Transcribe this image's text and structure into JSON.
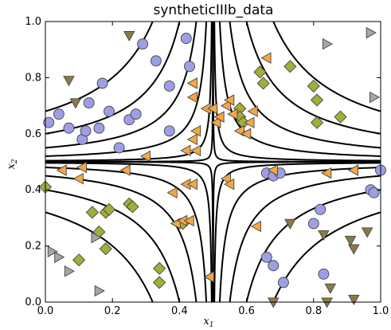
{
  "chart_data": {
    "type": "scatter",
    "title": "syntheticIIIb_data",
    "xlabel": "x",
    "xlabel_sub": "1",
    "ylabel": "x",
    "ylabel_sub": "2",
    "xlim": [
      0.0,
      1.0
    ],
    "ylim": [
      0.0,
      1.0
    ],
    "xticks": [
      0.0,
      0.2,
      0.4,
      0.6,
      0.8,
      1.0
    ],
    "yticks": [
      0.0,
      0.2,
      0.4,
      0.6,
      0.8,
      1.0
    ],
    "xtick_labels": [
      "0.0",
      "0.2",
      "0.4",
      "0.6",
      "0.8",
      "1.0"
    ],
    "ytick_labels": [
      "0.0",
      "0.2",
      "0.4",
      "0.6",
      "0.8",
      "1.0"
    ],
    "grid": false,
    "legend": null,
    "decision_boundary": {
      "center": [
        0.5,
        0.5
      ],
      "levels": [
        0.0002,
        0.002,
        0.01,
        0.025,
        0.05,
        0.09
      ],
      "color": "#000000"
    },
    "series": [
      {
        "marker": "circle",
        "color": "#9e9ee6",
        "points": [
          [
            0.01,
            0.64
          ],
          [
            0.04,
            0.67
          ],
          [
            0.07,
            0.62
          ],
          [
            0.11,
            0.58
          ],
          [
            0.12,
            0.61
          ],
          [
            0.13,
            0.71
          ],
          [
            0.16,
            0.62
          ],
          [
            0.17,
            0.78
          ],
          [
            0.19,
            0.68
          ],
          [
            0.22,
            0.55
          ],
          [
            0.25,
            0.65
          ],
          [
            0.27,
            0.67
          ],
          [
            0.29,
            0.92
          ],
          [
            0.33,
            0.86
          ],
          [
            0.37,
            0.61
          ],
          [
            0.37,
            0.77
          ],
          [
            0.42,
            0.94
          ],
          [
            0.43,
            0.84
          ],
          [
            0.66,
            0.46
          ],
          [
            0.68,
            0.45
          ],
          [
            0.7,
            0.46
          ],
          [
            0.8,
            0.28
          ],
          [
            0.82,
            0.33
          ],
          [
            0.66,
            0.16
          ],
          [
            0.68,
            0.13
          ],
          [
            0.71,
            0.07
          ],
          [
            0.83,
            0.1
          ],
          [
            0.97,
            0.4
          ],
          [
            0.98,
            0.39
          ],
          [
            1.0,
            0.47
          ]
        ]
      },
      {
        "marker": "diamond",
        "color": "#a3ad3b",
        "points": [
          [
            0.0,
            0.41
          ],
          [
            0.14,
            0.32
          ],
          [
            0.16,
            0.25
          ],
          [
            0.18,
            0.32
          ],
          [
            0.19,
            0.33
          ],
          [
            0.18,
            0.19
          ],
          [
            0.25,
            0.35
          ],
          [
            0.26,
            0.34
          ],
          [
            0.41,
            0.28
          ],
          [
            0.34,
            0.12
          ],
          [
            0.34,
            0.07
          ],
          [
            0.58,
            0.69
          ],
          [
            0.58,
            0.66
          ],
          [
            0.59,
            0.64
          ],
          [
            0.64,
            0.82
          ],
          [
            0.65,
            0.78
          ],
          [
            0.73,
            0.84
          ],
          [
            0.8,
            0.77
          ],
          [
            0.81,
            0.64
          ],
          [
            0.88,
            0.66
          ],
          [
            0.81,
            0.72
          ],
          [
            0.1,
            0.15
          ]
        ]
      },
      {
        "marker": "triangle-left",
        "color": "#f5a742",
        "points": [
          [
            0.05,
            0.47
          ],
          [
            0.1,
            0.44
          ],
          [
            0.11,
            0.48
          ],
          [
            0.24,
            0.47
          ],
          [
            0.3,
            0.52
          ],
          [
            0.38,
            0.39
          ],
          [
            0.39,
            0.28
          ],
          [
            0.41,
            0.29
          ],
          [
            0.43,
            0.29
          ],
          [
            0.42,
            0.42
          ],
          [
            0.44,
            0.42
          ],
          [
            0.45,
            0.54
          ],
          [
            0.44,
            0.58
          ],
          [
            0.45,
            0.61
          ],
          [
            0.44,
            0.73
          ],
          [
            0.44,
            0.78
          ],
          [
            0.42,
            0.54
          ],
          [
            0.48,
            0.69
          ],
          [
            0.5,
            0.69
          ],
          [
            0.51,
            0.64
          ],
          [
            0.52,
            0.66
          ],
          [
            0.54,
            0.7
          ],
          [
            0.55,
            0.72
          ],
          [
            0.56,
            0.67
          ],
          [
            0.58,
            0.61
          ],
          [
            0.6,
            0.6
          ],
          [
            0.61,
            0.64
          ],
          [
            0.62,
            0.68
          ],
          [
            0.66,
            0.87
          ],
          [
            0.68,
            0.47
          ],
          [
            0.54,
            0.44
          ],
          [
            0.55,
            0.42
          ],
          [
            0.63,
            0.27
          ],
          [
            0.49,
            0.09
          ],
          [
            0.84,
            0.46
          ],
          [
            0.92,
            0.47
          ]
        ]
      },
      {
        "marker": "triangle-down",
        "color": "#8c7a45",
        "points": [
          [
            0.07,
            0.79
          ],
          [
            0.09,
            0.71
          ],
          [
            0.25,
            0.95
          ],
          [
            0.73,
            0.28
          ],
          [
            0.83,
            0.24
          ],
          [
            0.91,
            0.22
          ],
          [
            0.92,
            0.19
          ],
          [
            0.96,
            0.25
          ],
          [
            0.85,
            0.05
          ],
          [
            0.92,
            0.01
          ],
          [
            0.68,
            0.0
          ],
          [
            0.84,
            0.0
          ]
        ]
      },
      {
        "marker": "triangle-right",
        "color": "#a6a6a6",
        "points": [
          [
            0.02,
            0.18
          ],
          [
            0.04,
            0.16
          ],
          [
            0.07,
            0.11
          ],
          [
            0.15,
            0.23
          ],
          [
            0.16,
            0.04
          ],
          [
            0.84,
            0.92
          ],
          [
            0.97,
            0.96
          ],
          [
            0.98,
            0.73
          ]
        ]
      }
    ]
  }
}
